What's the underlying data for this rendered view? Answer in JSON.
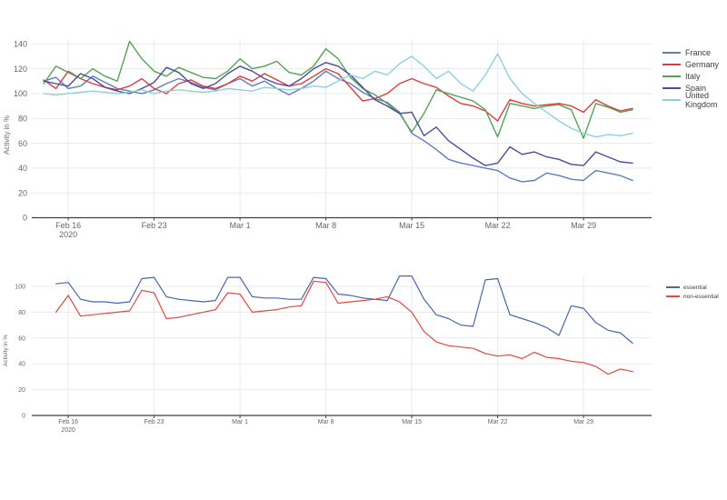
{
  "page": {
    "background": "#ffffff"
  },
  "axis_style": {
    "tick_color": "#6b655f",
    "axis_line_color": "#3f3f3f",
    "grid_color": "#e9e9e9"
  },
  "chart_data": [
    {
      "type": "line",
      "title": "",
      "ylabel": "Activity in %",
      "xlabel": "",
      "grid": true,
      "legend_position": "top-right",
      "ylim": [
        0,
        145
      ],
      "y_ticks": [
        0,
        20,
        40,
        60,
        80,
        100,
        120,
        140
      ],
      "x_tick_labels": [
        [
          "Feb 16",
          "2020"
        ],
        "Feb 23",
        "Mar 1",
        "Mar 8",
        "Mar 15",
        "Mar 22",
        "Mar 29"
      ],
      "x_tick_indices": [
        2,
        9,
        16,
        23,
        30,
        37,
        44
      ],
      "x_points": 49,
      "x_range_note": "daily values, two days before first tick through four days after last tick",
      "series": [
        {
          "name": "France",
          "color": "#5d7ebf",
          "values": [
            110,
            113,
            104,
            106,
            114,
            109,
            104,
            102,
            100,
            103,
            108,
            112,
            109,
            105,
            103,
            108,
            112,
            106,
            110,
            104,
            99,
            104,
            110,
            118,
            112,
            108,
            101,
            96,
            93,
            85,
            68,
            62,
            55,
            47,
            44,
            42,
            40,
            38,
            32,
            29,
            30,
            36,
            34,
            31,
            30,
            38,
            36,
            34,
            30
          ]
        },
        {
          "name": "Germany",
          "color": "#dd3d3d",
          "values": [
            111,
            104,
            118,
            112,
            108,
            105,
            103,
            106,
            112,
            104,
            100,
            108,
            111,
            106,
            104,
            108,
            114,
            110,
            116,
            111,
            106,
            108,
            114,
            120,
            116,
            105,
            94,
            96,
            100,
            108,
            112,
            108,
            105,
            98,
            92,
            90,
            86,
            78,
            95,
            92,
            90,
            91,
            92,
            90,
            85,
            95,
            90,
            86,
            88
          ]
        },
        {
          "name": "Italy",
          "color": "#55a356",
          "values": [
            108,
            122,
            117,
            112,
            120,
            114,
            110,
            142,
            128,
            118,
            114,
            121,
            117,
            113,
            112,
            118,
            128,
            120,
            122,
            126,
            117,
            115,
            122,
            136,
            128,
            113,
            104,
            99,
            92,
            84,
            69,
            84,
            103,
            100,
            97,
            94,
            87,
            65,
            92,
            90,
            88,
            90,
            91,
            87,
            64,
            92,
            89,
            85,
            87
          ]
        },
        {
          "name": "Spain",
          "color": "#4e4a9e",
          "values": [
            110,
            108,
            106,
            116,
            112,
            105,
            102,
            100,
            104,
            109,
            121,
            117,
            108,
            104,
            108,
            116,
            122,
            118,
            112,
            108,
            106,
            112,
            120,
            125,
            122,
            115,
            105,
            95,
            90,
            84,
            85,
            66,
            73,
            62,
            55,
            48,
            42,
            44,
            57,
            51,
            53,
            49,
            47,
            43,
            42,
            53,
            49,
            45,
            44
          ]
        },
        {
          "name": "United Kingdom",
          "color": "#8fd0dc",
          "values": [
            100,
            99,
            100,
            101,
            102,
            101,
            100,
            101,
            103,
            100,
            102,
            103,
            102,
            101,
            102,
            104,
            103,
            102,
            105,
            104,
            103,
            104,
            106,
            105,
            110,
            115,
            112,
            118,
            115,
            124,
            130,
            122,
            112,
            118,
            108,
            102,
            115,
            132,
            112,
            100,
            92,
            85,
            78,
            72,
            68,
            65,
            67,
            66,
            68
          ]
        }
      ]
    },
    {
      "type": "line",
      "title": "",
      "ylabel": "Activity in %",
      "xlabel": "",
      "grid": true,
      "legend_position": "top-right",
      "ylim": [
        0,
        110
      ],
      "y_ticks": [
        0,
        20,
        40,
        60,
        80,
        100
      ],
      "x_tick_labels": [
        [
          "Feb 16",
          "2020"
        ],
        "Feb 23",
        "Mar 1",
        "Mar 8",
        "Mar 15",
        "Mar 22",
        "Mar 29"
      ],
      "x_tick_indices": [
        2,
        9,
        16,
        23,
        30,
        37,
        44
      ],
      "x_points": 49,
      "x_range_note": "daily values aligned with top chart",
      "series": [
        {
          "name": "essential",
          "color": "#4666b0",
          "values": [
            null,
            102,
            103,
            90,
            88,
            88,
            87,
            88,
            106,
            107,
            92,
            90,
            89,
            88,
            89,
            107,
            107,
            92,
            91,
            91,
            90,
            90,
            107,
            106,
            94,
            93,
            91,
            90,
            89,
            108,
            108,
            90,
            78,
            75,
            70,
            69,
            105,
            106,
            78,
            75,
            72,
            68,
            62,
            85,
            83,
            72,
            66,
            64,
            56
          ]
        },
        {
          "name": "non-essential",
          "color": "#e8463f",
          "values": [
            null,
            80,
            93,
            77,
            78,
            79,
            80,
            81,
            97,
            95,
            75,
            76,
            78,
            80,
            82,
            95,
            94,
            80,
            81,
            82,
            84,
            85,
            104,
            103,
            87,
            88,
            89,
            90,
            92,
            88,
            80,
            65,
            57,
            54,
            53,
            52,
            48,
            46,
            47,
            44,
            49,
            45,
            44,
            42,
            41,
            38,
            32,
            36,
            34
          ]
        }
      ]
    }
  ]
}
